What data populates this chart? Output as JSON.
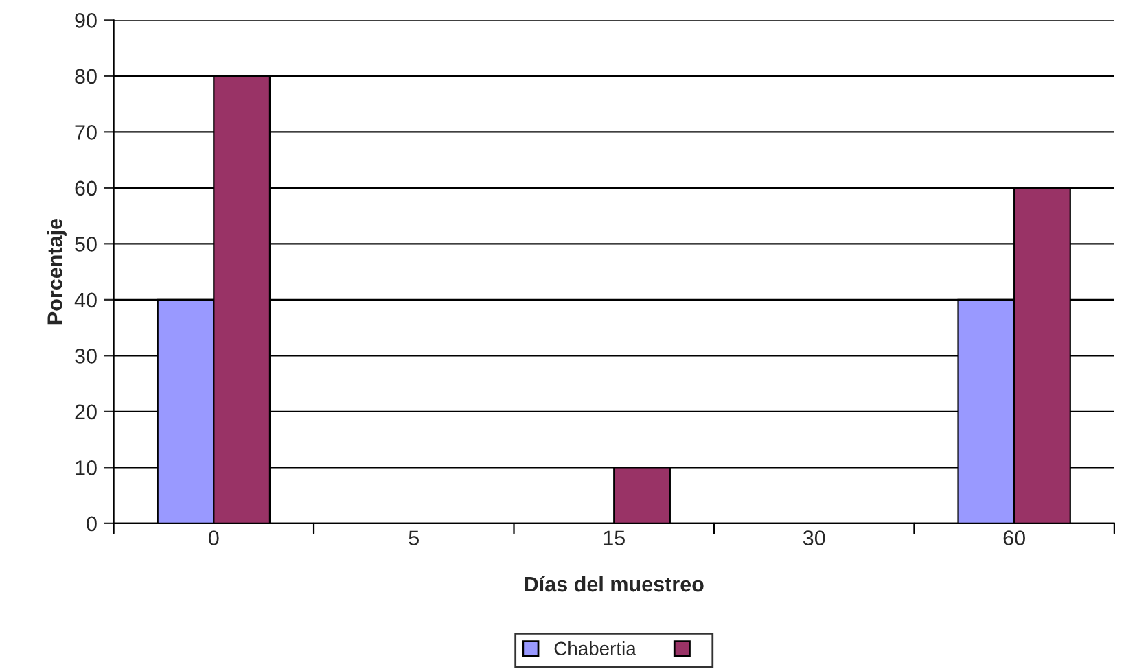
{
  "chart_data": {
    "type": "bar",
    "xlabel": "Días del muestreo",
    "ylabel": "Porcentaje",
    "categories": [
      "0",
      "5",
      "15",
      "30",
      "60"
    ],
    "series": [
      {
        "name": "Chabertia",
        "color": "#9999ff",
        "values": [
          40,
          0,
          0,
          0,
          40
        ]
      },
      {
        "color": "#993366",
        "values": [
          80,
          0,
          10,
          0,
          60
        ]
      }
    ],
    "ylim": [
      0,
      90
    ],
    "yticks": [
      0,
      10,
      20,
      30,
      40,
      50,
      60,
      70,
      80,
      90
    ],
    "grid": "y",
    "legend": "bottom"
  }
}
